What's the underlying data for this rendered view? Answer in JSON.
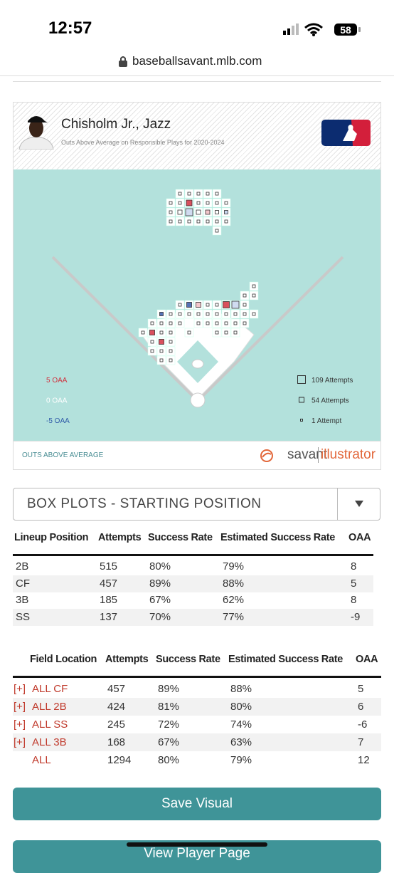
{
  "status_bar": {
    "time": "12:57",
    "battery": "58"
  },
  "browser": {
    "url": "baseballsavant.mlb.com"
  },
  "card": {
    "player": "Chisholm Jr., Jazz",
    "subtitle": "Outs Above Average on Responsible Plays for 2020-2024",
    "color_legend": [
      "5 OAA",
      "0 OAA",
      "-5 OAA"
    ],
    "size_legend": [
      "109 Attempts",
      "54 Attempts",
      "1 Attempt"
    ],
    "footer": "OUTS ABOVE AVERAGE",
    "brand": [
      "savant",
      "illustrator"
    ]
  },
  "dropdown": {
    "label": "BOX PLOTS - STARTING POSITION"
  },
  "position_table": {
    "columns": [
      "Lineup Position",
      "Attempts",
      "Success Rate",
      "Estimated Success Rate",
      "OAA"
    ],
    "rows": [
      [
        "2B",
        "515",
        "80%",
        "79%",
        "8"
      ],
      [
        "CF",
        "457",
        "89%",
        "88%",
        "5"
      ],
      [
        "3B",
        "185",
        "67%",
        "62%",
        "8"
      ],
      [
        "SS",
        "137",
        "70%",
        "77%",
        "-9"
      ]
    ]
  },
  "location_table": {
    "columns": [
      "Field Location",
      "Attempts",
      "Success Rate",
      "Estimated Success Rate",
      "OAA"
    ],
    "rows": [
      {
        "toggle": "[+]",
        "cells": [
          "ALL CF",
          "457",
          "89%",
          "88%",
          "5"
        ]
      },
      {
        "toggle": "[+]",
        "cells": [
          "ALL 2B",
          "424",
          "81%",
          "80%",
          "6"
        ]
      },
      {
        "toggle": "[+]",
        "cells": [
          "ALL SS",
          "245",
          "72%",
          "74%",
          "-6"
        ]
      },
      {
        "toggle": "[+]",
        "cells": [
          "ALL 3B",
          "168",
          "67%",
          "63%",
          "7"
        ]
      },
      {
        "cells": [
          "ALL",
          "1294",
          "80%",
          "79%",
          "12"
        ]
      }
    ]
  },
  "buttons": [
    "Save Visual",
    "View Player Page"
  ]
}
